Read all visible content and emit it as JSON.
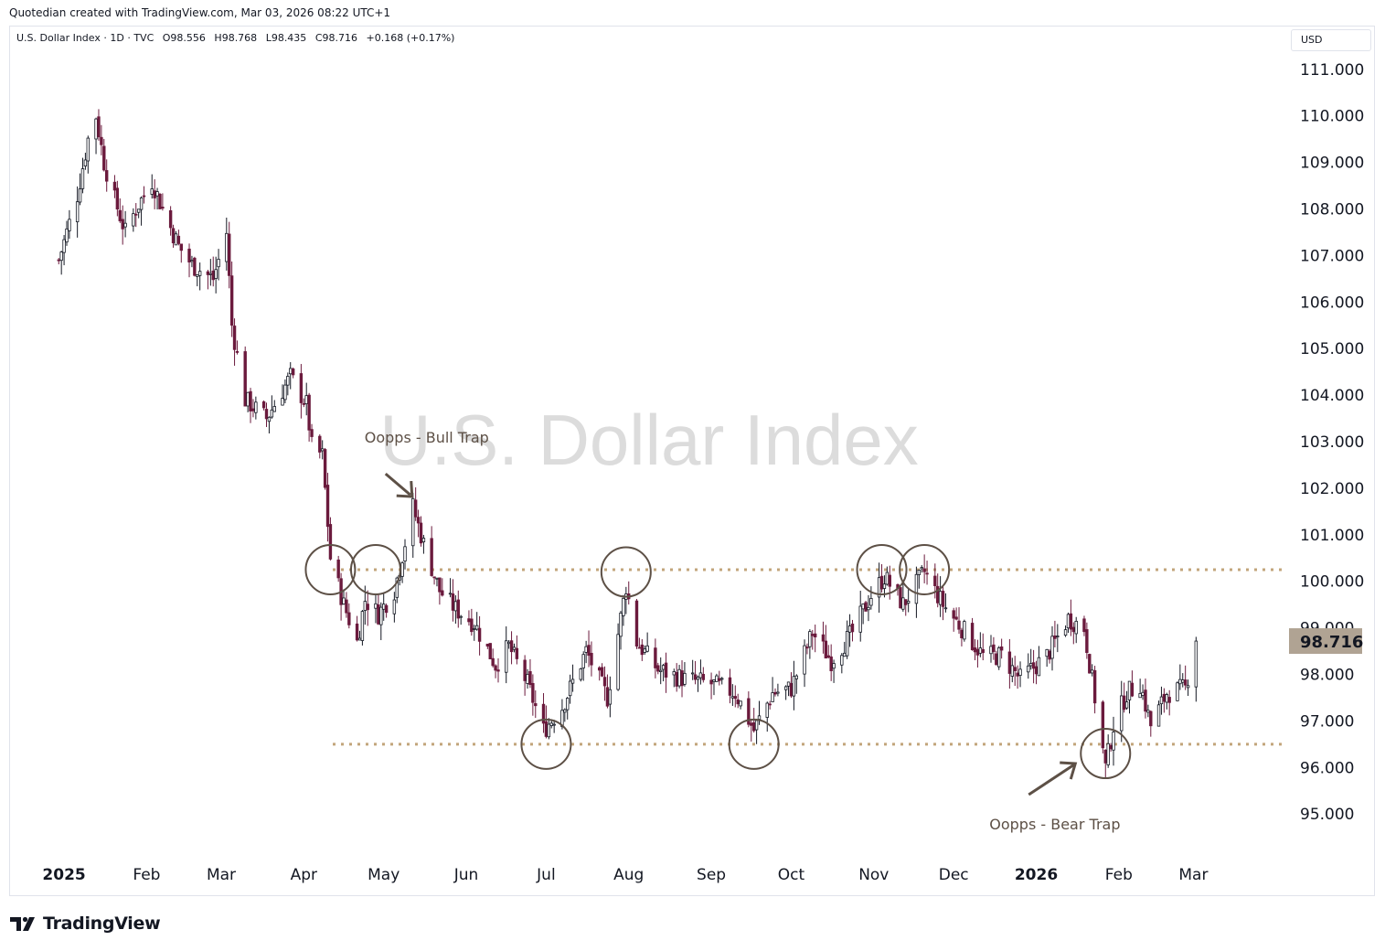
{
  "header": {
    "credit": "Quotedian created with TradingView.com, Mar 03, 2026 08:22 UTC+1",
    "symbol": "U.S. Dollar Index · 1D · TVC",
    "open": "O98.556",
    "high": "H98.768",
    "low": "L98.435",
    "close": "C98.716",
    "change": "+0.168 (+0.17%)",
    "currency": "USD"
  },
  "footer": {
    "brand": "TradingView"
  },
  "colors": {
    "up": "#131722",
    "down": "#6b1a3d",
    "level_line": "#c2a57b",
    "annotation": "#5d5046",
    "watermark": "#dcdcdc",
    "price_tag_bg": "#b0a393",
    "axis_text": "#131722"
  },
  "chart_data": {
    "type": "candlestick",
    "title": "U.S. Dollar Index",
    "interval": "1D",
    "x_ticks": [
      "2025",
      "Feb",
      "Mar",
      "Apr",
      "May",
      "Jun",
      "Jul",
      "Aug",
      "Sep",
      "Oct",
      "Nov",
      "Dec",
      "2026",
      "Feb",
      "Mar"
    ],
    "y_ticks": [
      "111.000",
      "110.000",
      "109.000",
      "108.000",
      "107.000",
      "106.000",
      "105.000",
      "104.000",
      "103.000",
      "102.000",
      "101.000",
      "100.000",
      "99.000",
      "98.000",
      "97.000",
      "96.000",
      "95.000"
    ],
    "ylim": [
      94.2,
      111.6
    ],
    "last_price": "98.716",
    "levels": [
      100.25,
      96.5
    ],
    "close_path": [
      [
        "2024-12-30",
        106.9
      ],
      [
        "2025-01-02",
        107.5
      ],
      [
        "2025-01-06",
        108.3
      ],
      [
        "2025-01-10",
        109.5
      ],
      [
        "2025-01-13",
        110.0
      ],
      [
        "2025-01-16",
        109.0
      ],
      [
        "2025-01-20",
        108.2
      ],
      [
        "2025-01-24",
        107.5
      ],
      [
        "2025-01-28",
        108.0
      ],
      [
        "2025-02-03",
        108.6
      ],
      [
        "2025-02-07",
        108.0
      ],
      [
        "2025-02-13",
        107.2
      ],
      [
        "2025-02-18",
        106.8
      ],
      [
        "2025-02-26",
        106.5
      ],
      [
        "2025-03-03",
        107.5
      ],
      [
        "2025-03-05",
        105.5
      ],
      [
        "2025-03-10",
        103.9
      ],
      [
        "2025-03-18",
        103.5
      ],
      [
        "2025-03-27",
        104.4
      ],
      [
        "2025-04-02",
        103.8
      ],
      [
        "2025-04-04",
        102.9
      ],
      [
        "2025-04-08",
        102.7
      ],
      [
        "2025-04-11",
        100.5
      ],
      [
        "2025-04-16",
        99.5
      ],
      [
        "2025-04-21",
        98.7
      ],
      [
        "2025-04-24",
        99.6
      ],
      [
        "2025-04-29",
        99.3
      ],
      [
        "2025-05-05",
        99.8
      ],
      [
        "2025-05-12",
        101.6
      ],
      [
        "2025-05-16",
        100.8
      ],
      [
        "2025-05-22",
        99.8
      ],
      [
        "2025-05-28",
        99.4
      ],
      [
        "2025-06-04",
        99.1
      ],
      [
        "2025-06-12",
        98.2
      ],
      [
        "2025-06-17",
        98.6
      ],
      [
        "2025-06-24",
        97.8
      ],
      [
        "2025-06-30",
        96.8
      ],
      [
        "2025-07-07",
        97.3
      ],
      [
        "2025-07-16",
        98.5
      ],
      [
        "2025-07-24",
        97.5
      ],
      [
        "2025-07-31",
        99.9
      ],
      [
        "2025-08-04",
        98.7
      ],
      [
        "2025-08-12",
        98.1
      ],
      [
        "2025-08-22",
        97.9
      ],
      [
        "2025-09-01",
        97.8
      ],
      [
        "2025-09-10",
        97.6
      ],
      [
        "2025-09-17",
        96.8
      ],
      [
        "2025-09-24",
        97.6
      ],
      [
        "2025-10-01",
        97.7
      ],
      [
        "2025-10-09",
        98.9
      ],
      [
        "2025-10-16",
        98.3
      ],
      [
        "2025-10-24",
        98.9
      ],
      [
        "2025-10-31",
        99.7
      ],
      [
        "2025-11-05",
        100.1
      ],
      [
        "2025-11-12",
        99.5
      ],
      [
        "2025-11-20",
        100.2
      ],
      [
        "2025-11-27",
        99.5
      ],
      [
        "2025-12-04",
        99.0
      ],
      [
        "2025-12-12",
        98.4
      ],
      [
        "2025-12-19",
        98.4
      ],
      [
        "2025-12-26",
        97.9
      ],
      [
        "2026-01-05",
        98.4
      ],
      [
        "2026-01-13",
        99.2
      ],
      [
        "2026-01-19",
        99.0
      ],
      [
        "2026-01-23",
        97.5
      ],
      [
        "2026-01-27",
        96.0
      ],
      [
        "2026-01-30",
        96.9
      ],
      [
        "2026-02-04",
        97.6
      ],
      [
        "2026-02-09",
        97.8
      ],
      [
        "2026-02-13",
        96.9
      ],
      [
        "2026-02-19",
        97.6
      ],
      [
        "2026-02-26",
        97.7
      ],
      [
        "2026-03-02",
        98.716
      ]
    ],
    "annotations": [
      {
        "label": "Oopps - Bull Trap",
        "date": "2025-05-12",
        "price": 101.8
      },
      {
        "label": "Oopps - Bear Trap",
        "date": "2026-01-27",
        "price": 96.3
      }
    ],
    "circles": [
      [
        "2025-04-11",
        100.25
      ],
      [
        "2025-04-28",
        100.25
      ],
      [
        "2025-07-01",
        96.5
      ],
      [
        "2025-07-31",
        100.2
      ],
      [
        "2025-09-17",
        96.5
      ],
      [
        "2025-11-04",
        100.25
      ],
      [
        "2025-11-20",
        100.25
      ],
      [
        "2026-01-27",
        96.3
      ]
    ]
  }
}
